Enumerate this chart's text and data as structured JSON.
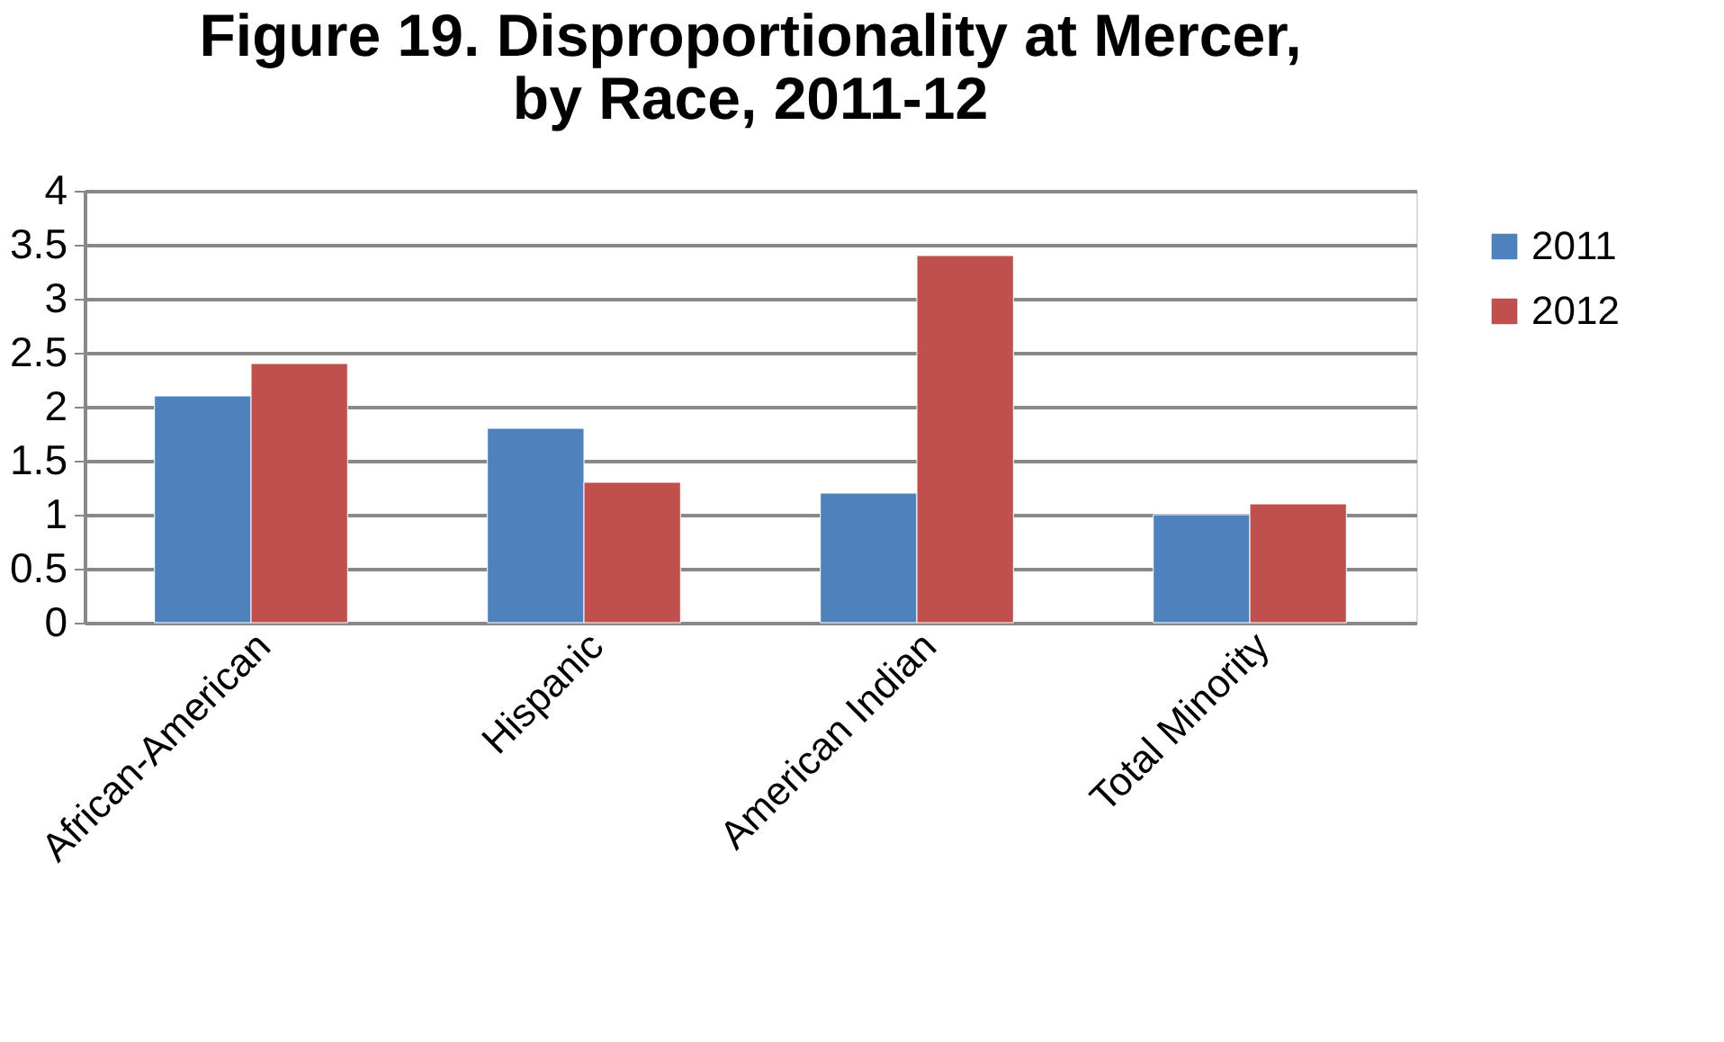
{
  "chart_data": {
    "type": "bar",
    "title": [
      "Figure 19. Disproportionality at Mercer,",
      "by Race, 2011-12"
    ],
    "categories": [
      "African-American",
      "Hispanic",
      "American Indian",
      "Total Minority"
    ],
    "series": [
      {
        "name": "2011",
        "color": "#4f81bd",
        "values": [
          2.1,
          1.8,
          1.2,
          1.0
        ]
      },
      {
        "name": "2012",
        "color": "#c0504d",
        "values": [
          2.4,
          1.3,
          3.4,
          1.1
        ]
      }
    ],
    "ylim": [
      0,
      4
    ],
    "yticks": [
      0,
      0.5,
      1,
      1.5,
      2,
      2.5,
      3,
      3.5,
      4
    ],
    "grid": "y",
    "legend": "right"
  }
}
